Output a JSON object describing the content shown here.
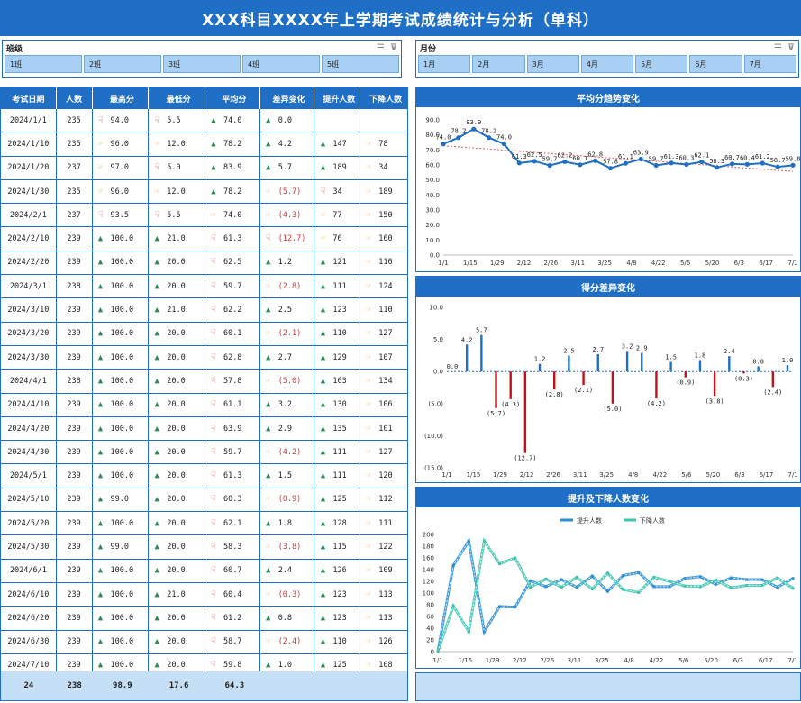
{
  "title": "XXX科目XXXX年上学期考试成绩统计与分析（单科）",
  "slicer_class": {
    "title": "班级",
    "items": [
      "1班",
      "2班",
      "3班",
      "4班",
      "5班"
    ]
  },
  "slicer_month": {
    "title": "月份",
    "items": [
      "1月",
      "2月",
      "3月",
      "4月",
      "5月",
      "6月",
      "7月"
    ]
  },
  "table": {
    "headers": [
      "考试日期",
      "人数",
      "最高分",
      "最低分",
      "平均分",
      "差异变化",
      "提升人数",
      "下降人数"
    ],
    "rows": [
      {
        "date": "2024/1/1",
        "n": "235",
        "max": "94.0",
        "maxI": "dn",
        "min": "5.5",
        "minI": "dn",
        "avg": "74.0",
        "avgI": "up",
        "diff": "0.0",
        "diffI": "up",
        "neg": false,
        "up": "",
        "upI": "",
        "dn": "",
        "dnI": ""
      },
      {
        "date": "2024/1/10",
        "n": "235",
        "max": "96.0",
        "maxI": "sd",
        "min": "12.0",
        "minI": "sd",
        "avg": "78.2",
        "avgI": "up",
        "diff": "4.2",
        "diffI": "up",
        "neg": false,
        "up": "147",
        "upI": "up",
        "dn": "78",
        "dnI": "sd"
      },
      {
        "date": "2024/1/20",
        "n": "237",
        "max": "97.0",
        "maxI": "sd",
        "min": "5.0",
        "minI": "dn",
        "avg": "83.9",
        "avgI": "up",
        "diff": "5.7",
        "diffI": "up",
        "neg": false,
        "up": "189",
        "upI": "up",
        "dn": "34",
        "dnI": "sd"
      },
      {
        "date": "2024/1/30",
        "n": "235",
        "max": "96.0",
        "maxI": "sd",
        "min": "12.0",
        "minI": "sd",
        "avg": "78.2",
        "avgI": "up",
        "diff": "(5.7)",
        "diffI": "sd",
        "neg": true,
        "up": "34",
        "upI": "dn",
        "dn": "189",
        "dnI": "sd"
      },
      {
        "date": "2024/2/1",
        "n": "237",
        "max": "93.5",
        "maxI": "dn",
        "min": "5.5",
        "minI": "dn",
        "avg": "74.0",
        "avgI": "sd",
        "diff": "(4.3)",
        "diffI": "sd",
        "neg": true,
        "up": "77",
        "upI": "sd",
        "dn": "150",
        "dnI": "sd"
      },
      {
        "date": "2024/2/10",
        "n": "239",
        "max": "100.0",
        "maxI": "up",
        "min": "21.0",
        "minI": "up",
        "avg": "61.3",
        "avgI": "dn",
        "diff": "(12.7)",
        "diffI": "dn",
        "neg": true,
        "up": "76",
        "upI": "sd",
        "dn": "160",
        "dnI": "sd"
      },
      {
        "date": "2024/2/20",
        "n": "239",
        "max": "100.0",
        "maxI": "up",
        "min": "20.0",
        "minI": "up",
        "avg": "62.5",
        "avgI": "dn",
        "diff": "1.2",
        "diffI": "up",
        "neg": false,
        "up": "121",
        "upI": "up",
        "dn": "110",
        "dnI": "sd"
      },
      {
        "date": "2024/3/1",
        "n": "238",
        "max": "100.0",
        "maxI": "up",
        "min": "20.0",
        "minI": "up",
        "avg": "59.7",
        "avgI": "dn",
        "diff": "(2.8)",
        "diffI": "sd",
        "neg": true,
        "up": "111",
        "upI": "up",
        "dn": "124",
        "dnI": "sd"
      },
      {
        "date": "2024/3/10",
        "n": "239",
        "max": "100.0",
        "maxI": "up",
        "min": "21.0",
        "minI": "up",
        "avg": "62.2",
        "avgI": "dn",
        "diff": "2.5",
        "diffI": "up",
        "neg": false,
        "up": "123",
        "upI": "up",
        "dn": "110",
        "dnI": "sd"
      },
      {
        "date": "2024/3/20",
        "n": "239",
        "max": "100.0",
        "maxI": "up",
        "min": "20.0",
        "minI": "up",
        "avg": "60.1",
        "avgI": "dn",
        "diff": "(2.1)",
        "diffI": "sd",
        "neg": true,
        "up": "110",
        "upI": "up",
        "dn": "127",
        "dnI": "sd"
      },
      {
        "date": "2024/3/30",
        "n": "239",
        "max": "100.0",
        "maxI": "up",
        "min": "20.0",
        "minI": "up",
        "avg": "62.8",
        "avgI": "dn",
        "diff": "2.7",
        "diffI": "up",
        "neg": false,
        "up": "129",
        "upI": "up",
        "dn": "107",
        "dnI": "sd"
      },
      {
        "date": "2024/4/1",
        "n": "238",
        "max": "100.0",
        "maxI": "up",
        "min": "20.0",
        "minI": "up",
        "avg": "57.8",
        "avgI": "dn",
        "diff": "(5.0)",
        "diffI": "sd",
        "neg": true,
        "up": "103",
        "upI": "up",
        "dn": "134",
        "dnI": "sd"
      },
      {
        "date": "2024/4/10",
        "n": "239",
        "max": "100.0",
        "maxI": "up",
        "min": "20.0",
        "minI": "up",
        "avg": "61.1",
        "avgI": "dn",
        "diff": "3.2",
        "diffI": "up",
        "neg": false,
        "up": "130",
        "upI": "up",
        "dn": "106",
        "dnI": "sd"
      },
      {
        "date": "2024/4/20",
        "n": "239",
        "max": "100.0",
        "maxI": "up",
        "min": "20.0",
        "minI": "up",
        "avg": "63.9",
        "avgI": "dn",
        "diff": "2.9",
        "diffI": "up",
        "neg": false,
        "up": "135",
        "upI": "up",
        "dn": "101",
        "dnI": "sd"
      },
      {
        "date": "2024/4/30",
        "n": "239",
        "max": "100.0",
        "maxI": "up",
        "min": "20.0",
        "minI": "up",
        "avg": "59.7",
        "avgI": "dn",
        "diff": "(4.2)",
        "diffI": "sd",
        "neg": true,
        "up": "111",
        "upI": "up",
        "dn": "127",
        "dnI": "sd"
      },
      {
        "date": "2024/5/1",
        "n": "239",
        "max": "100.0",
        "maxI": "up",
        "min": "20.0",
        "minI": "up",
        "avg": "61.3",
        "avgI": "dn",
        "diff": "1.5",
        "diffI": "up",
        "neg": false,
        "up": "111",
        "upI": "up",
        "dn": "120",
        "dnI": "sd"
      },
      {
        "date": "2024/5/10",
        "n": "239",
        "max": "99.0",
        "maxI": "up",
        "min": "20.0",
        "minI": "up",
        "avg": "60.3",
        "avgI": "dn",
        "diff": "(0.9)",
        "diffI": "sd",
        "neg": true,
        "up": "125",
        "upI": "up",
        "dn": "112",
        "dnI": "sd"
      },
      {
        "date": "2024/5/20",
        "n": "239",
        "max": "100.0",
        "maxI": "up",
        "min": "20.0",
        "minI": "up",
        "avg": "62.1",
        "avgI": "dn",
        "diff": "1.8",
        "diffI": "up",
        "neg": false,
        "up": "128",
        "upI": "up",
        "dn": "111",
        "dnI": "sd"
      },
      {
        "date": "2024/5/30",
        "n": "239",
        "max": "99.0",
        "maxI": "up",
        "min": "20.0",
        "minI": "up",
        "avg": "58.3",
        "avgI": "dn",
        "diff": "(3.8)",
        "diffI": "sd",
        "neg": true,
        "up": "115",
        "upI": "up",
        "dn": "122",
        "dnI": "sd"
      },
      {
        "date": "2024/6/1",
        "n": "239",
        "max": "100.0",
        "maxI": "up",
        "min": "20.0",
        "minI": "up",
        "avg": "60.7",
        "avgI": "dn",
        "diff": "2.4",
        "diffI": "up",
        "neg": false,
        "up": "126",
        "upI": "up",
        "dn": "109",
        "dnI": "sd"
      },
      {
        "date": "2024/6/10",
        "n": "239",
        "max": "100.0",
        "maxI": "up",
        "min": "21.0",
        "minI": "up",
        "avg": "60.4",
        "avgI": "dn",
        "diff": "(0.3)",
        "diffI": "sd",
        "neg": true,
        "up": "123",
        "upI": "up",
        "dn": "113",
        "dnI": "sd"
      },
      {
        "date": "2024/6/20",
        "n": "239",
        "max": "100.0",
        "maxI": "up",
        "min": "20.0",
        "minI": "up",
        "avg": "61.2",
        "avgI": "dn",
        "diff": "0.8",
        "diffI": "up",
        "neg": false,
        "up": "123",
        "upI": "up",
        "dn": "113",
        "dnI": "sd"
      },
      {
        "date": "2024/6/30",
        "n": "239",
        "max": "100.0",
        "maxI": "up",
        "min": "20.0",
        "minI": "up",
        "avg": "58.7",
        "avgI": "dn",
        "diff": "(2.4)",
        "diffI": "sd",
        "neg": true,
        "up": "110",
        "upI": "up",
        "dn": "126",
        "dnI": "sd"
      },
      {
        "date": "2024/7/10",
        "n": "239",
        "max": "100.0",
        "maxI": "up",
        "min": "20.0",
        "minI": "up",
        "avg": "59.8",
        "avgI": "dn",
        "diff": "1.0",
        "diffI": "up",
        "neg": false,
        "up": "125",
        "upI": "up",
        "dn": "108",
        "dnI": "sd"
      }
    ],
    "footer": [
      "24",
      "238",
      "98.9",
      "17.6",
      "64.3",
      "",
      "",
      ""
    ]
  },
  "chart_data": [
    {
      "type": "line",
      "title": "平均分趋势变化",
      "x": [
        "1/1",
        "1/10",
        "1/20",
        "1/30",
        "2/1",
        "2/10",
        "2/20",
        "3/1",
        "3/10",
        "3/20",
        "3/30",
        "4/1",
        "4/10",
        "4/20",
        "4/30",
        "5/1",
        "5/10",
        "5/20",
        "5/30",
        "6/1",
        "6/10",
        "6/20",
        "6/30",
        "7/10"
      ],
      "x_tick_labels": [
        "1/1",
        "1/15",
        "1/29",
        "2/12",
        "2/26",
        "3/11",
        "3/25",
        "4/8",
        "4/22",
        "5/6",
        "5/20",
        "6/3",
        "6/17",
        "7/1"
      ],
      "values": [
        74.0,
        78.2,
        83.9,
        78.2,
        74.0,
        61.3,
        62.5,
        59.7,
        62.2,
        60.1,
        62.8,
        57.8,
        61.1,
        63.9,
        59.7,
        61.3,
        60.3,
        62.1,
        58.3,
        60.7,
        60.4,
        61.2,
        58.7,
        59.8
      ],
      "ylim": [
        0,
        90
      ],
      "yticks": [
        "0.0",
        "10.0",
        "20.0",
        "30.0",
        "40.0",
        "50.0",
        "60.0",
        "70.0",
        "80.0",
        "90.0"
      ],
      "trendline": true,
      "color": "#1f6fc6"
    },
    {
      "type": "bar",
      "title": "得分差异变化",
      "x": [
        "1/1",
        "1/10",
        "1/20",
        "1/30",
        "2/1",
        "2/10",
        "2/20",
        "3/1",
        "3/10",
        "3/20",
        "3/30",
        "4/1",
        "4/10",
        "4/20",
        "4/30",
        "5/1",
        "5/10",
        "5/20",
        "5/30",
        "6/1",
        "6/10",
        "6/20",
        "6/30",
        "7/10"
      ],
      "x_tick_labels": [
        "1/1",
        "1/15",
        "1/29",
        "2/12",
        "2/26",
        "3/11",
        "3/25",
        "4/8",
        "4/22",
        "5/6",
        "5/20",
        "6/3",
        "6/17",
        "7/1"
      ],
      "values": [
        0.0,
        4.2,
        5.7,
        -5.7,
        -4.3,
        -12.7,
        1.2,
        -2.8,
        2.5,
        -2.1,
        2.7,
        -5.0,
        3.2,
        2.9,
        -4.2,
        1.5,
        -0.9,
        1.8,
        -3.8,
        2.4,
        -0.3,
        0.8,
        -2.4,
        1.0
      ],
      "labels": [
        "0.0",
        "4.2",
        "5.7",
        "(5.7)",
        "(4.3)",
        "(12.7)",
        "1.2",
        "(2.8)",
        "2.5",
        "(2.1)",
        "2.7",
        "(5.0)",
        "3.2",
        "2.9",
        "(4.2)",
        "1.5",
        "(0.9)",
        "1.8",
        "(3.8)",
        "2.4",
        "(0.3)",
        "0.8",
        "(2.4)",
        "1.0"
      ],
      "ylim": [
        -15,
        10
      ],
      "yticks": [
        "(15.0)",
        "(10.0)",
        "(5.0)",
        "0.0",
        "5.0",
        "10.0"
      ],
      "pos_color": "#1f6fc6",
      "neg_color": "#c0121a"
    },
    {
      "type": "line",
      "title": "提升及下降人数变化",
      "x": [
        "1/1",
        "1/10",
        "1/20",
        "1/30",
        "2/1",
        "2/10",
        "2/20",
        "3/1",
        "3/10",
        "3/20",
        "3/30",
        "4/1",
        "4/10",
        "4/20",
        "4/30",
        "5/1",
        "5/10",
        "5/20",
        "5/30",
        "6/1",
        "6/10",
        "6/20",
        "6/30",
        "7/10"
      ],
      "x_tick_labels": [
        "1/1",
        "1/15",
        "1/29",
        "2/12",
        "2/26",
        "3/11",
        "3/25",
        "4/8",
        "4/22",
        "5/6",
        "5/20",
        "6/3",
        "6/17",
        "7/1"
      ],
      "series": [
        {
          "name": "提升人数",
          "color": "#2a8fd6",
          "values": [
            0,
            147,
            189,
            34,
            77,
            76,
            121,
            111,
            123,
            110,
            129,
            103,
            130,
            135,
            111,
            111,
            125,
            128,
            115,
            126,
            123,
            123,
            110,
            125
          ]
        },
        {
          "name": "下降人数",
          "color": "#3cc5b0",
          "values": [
            0,
            78,
            34,
            189,
            150,
            160,
            110,
            124,
            110,
            127,
            107,
            134,
            106,
            101,
            127,
            120,
            112,
            111,
            122,
            109,
            113,
            113,
            126,
            108
          ]
        }
      ],
      "ylim": [
        0,
        200
      ],
      "yticks": [
        "0",
        "20",
        "40",
        "60",
        "80",
        "100",
        "120",
        "140",
        "160",
        "180",
        "200"
      ],
      "legend": "top"
    }
  ]
}
